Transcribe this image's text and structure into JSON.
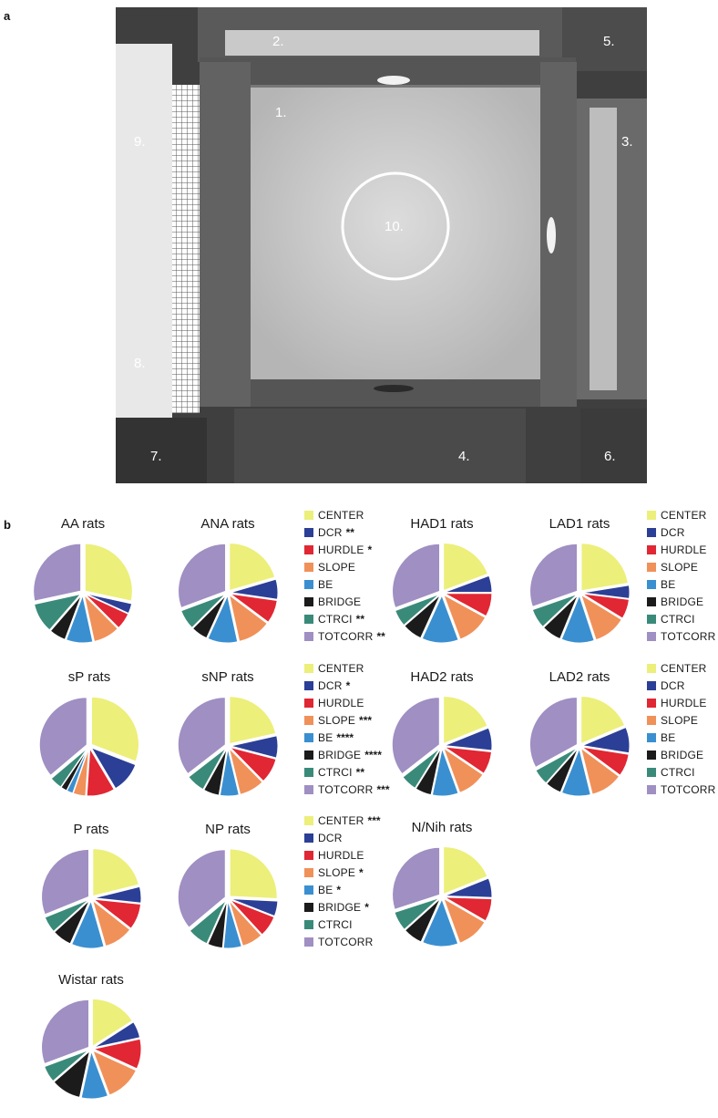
{
  "panels": {
    "a": "a",
    "b": "b"
  },
  "photo": {
    "labels": [
      "1.",
      "2.",
      "3.",
      "4.",
      "5.",
      "6.",
      "7.",
      "8.",
      "9.",
      "10."
    ]
  },
  "colors": {
    "CENTER": "#ecef7a",
    "DCR": "#2b3f96",
    "HURDLE": "#e02733",
    "SLOPE": "#f0915a",
    "BE": "#3a8fd0",
    "BRIDGE": "#1b1b1b",
    "CTRCI": "#3a8a7a",
    "TOTCORR": "#9f8fc2"
  },
  "chart_data": [
    {
      "type": "pie",
      "title": "AA rats",
      "categories": [
        "CENTER",
        "DCR",
        "HURDLE",
        "SLOPE",
        "BE",
        "BRIDGE",
        "CTRCI",
        "TOTCORR"
      ],
      "values": [
        25,
        3,
        5,
        8,
        8,
        5,
        9,
        25
      ]
    },
    {
      "type": "pie",
      "title": "ANA rats",
      "categories": [
        "CENTER",
        "DCR",
        "HURDLE",
        "SLOPE",
        "BE",
        "BRIDGE",
        "CTRCI",
        "TOTCORR"
      ],
      "values": [
        18,
        6,
        7,
        10,
        9,
        5,
        6,
        27
      ]
    },
    {
      "type": "pie",
      "title": "HAD1 rats",
      "categories": [
        "CENTER",
        "DCR",
        "HURDLE",
        "SLOPE",
        "BE",
        "BRIDGE",
        "CTRCI",
        "TOTCORR"
      ],
      "values": [
        17,
        5,
        7,
        10,
        11,
        6,
        5,
        27
      ]
    },
    {
      "type": "pie",
      "title": "LAD1 rats",
      "categories": [
        "CENTER",
        "DCR",
        "HURDLE",
        "SLOPE",
        "BE",
        "BRIDGE",
        "CTRCI",
        "TOTCORR"
      ],
      "values": [
        20,
        4,
        6,
        10,
        10,
        6,
        6,
        27
      ]
    },
    {
      "type": "pie",
      "title": "sP rats",
      "categories": [
        "CENTER",
        "DCR",
        "HURDLE",
        "SLOPE",
        "BE",
        "BRIDGE",
        "CTRCI",
        "TOTCORR"
      ],
      "values": [
        29,
        10,
        9,
        4,
        2,
        2,
        4,
        34
      ]
    },
    {
      "type": "pie",
      "title": "sNP rats",
      "categories": [
        "CENTER",
        "DCR",
        "HURDLE",
        "SLOPE",
        "BE",
        "BRIDGE",
        "CTRCI",
        "TOTCORR"
      ],
      "values": [
        20,
        7,
        8,
        8,
        6,
        5,
        6,
        33
      ]
    },
    {
      "type": "pie",
      "title": "HAD2 rats",
      "categories": [
        "CENTER",
        "DCR",
        "HURDLE",
        "SLOPE",
        "BE",
        "BRIDGE",
        "CTRCI",
        "TOTCORR"
      ],
      "values": [
        17,
        7,
        7,
        9,
        8,
        5,
        5,
        32
      ]
    },
    {
      "type": "pie",
      "title": "LAD2 rats",
      "categories": [
        "CENTER",
        "DCR",
        "HURDLE",
        "SLOPE",
        "BE",
        "BRIDGE",
        "CTRCI",
        "TOTCORR"
      ],
      "values": [
        17,
        8,
        7,
        10,
        9,
        5,
        5,
        30
      ]
    },
    {
      "type": "pie",
      "title": "P rats",
      "categories": [
        "CENTER",
        "DCR",
        "HURDLE",
        "SLOPE",
        "BE",
        "BRIDGE",
        "CTRCI",
        "TOTCORR"
      ],
      "values": [
        19,
        5,
        8,
        9,
        10,
        6,
        5,
        28
      ]
    },
    {
      "type": "pie",
      "title": "NP rats",
      "categories": [
        "CENTER",
        "DCR",
        "HURDLE",
        "SLOPE",
        "BE",
        "BRIDGE",
        "CTRCI",
        "TOTCORR"
      ],
      "values": [
        25,
        5,
        7,
        7,
        6,
        5,
        7,
        35
      ]
    },
    {
      "type": "pie",
      "title": "N/Nih rats",
      "categories": [
        "CENTER",
        "DCR",
        "HURDLE",
        "SLOPE",
        "BE",
        "BRIDGE",
        "CTRCI",
        "TOTCORR"
      ],
      "values": [
        17,
        6,
        7,
        10,
        11,
        6,
        6,
        27
      ]
    },
    {
      "type": "pie",
      "title": "Wistar rats",
      "categories": [
        "CENTER",
        "DCR",
        "HURDLE",
        "SLOPE",
        "BE",
        "BRIDGE",
        "CTRCI",
        "TOTCORR"
      ],
      "values": [
        14,
        5,
        9,
        11,
        8,
        9,
        5,
        27
      ]
    }
  ],
  "legends": [
    {
      "id": "legend-ana",
      "items": [
        {
          "cat": "CENTER",
          "label": "CENTER",
          "stars": ""
        },
        {
          "cat": "DCR",
          "label": "DCR",
          "stars": "**"
        },
        {
          "cat": "HURDLE",
          "label": "HURDLE",
          "stars": "*"
        },
        {
          "cat": "SLOPE",
          "label": "SLOPE",
          "stars": ""
        },
        {
          "cat": "BE",
          "label": "BE",
          "stars": ""
        },
        {
          "cat": "BRIDGE",
          "label": "BRIDGE",
          "stars": ""
        },
        {
          "cat": "CTRCI",
          "label": "CTRCI",
          "stars": "**"
        },
        {
          "cat": "TOTCORR",
          "label": "TOTCORR",
          "stars": "**"
        }
      ]
    },
    {
      "id": "legend-lad1",
      "items": [
        {
          "cat": "CENTER",
          "label": "CENTER",
          "stars": ""
        },
        {
          "cat": "DCR",
          "label": "DCR",
          "stars": ""
        },
        {
          "cat": "HURDLE",
          "label": "HURDLE",
          "stars": ""
        },
        {
          "cat": "SLOPE",
          "label": "SLOPE",
          "stars": ""
        },
        {
          "cat": "BE",
          "label": "BE",
          "stars": ""
        },
        {
          "cat": "BRIDGE",
          "label": "BRIDGE",
          "stars": ""
        },
        {
          "cat": "CTRCI",
          "label": "CTRCI",
          "stars": ""
        },
        {
          "cat": "TOTCORR",
          "label": "TOTCORR",
          "stars": ""
        }
      ]
    },
    {
      "id": "legend-snp",
      "items": [
        {
          "cat": "CENTER",
          "label": "CENTER",
          "stars": ""
        },
        {
          "cat": "DCR",
          "label": "DCR",
          "stars": "*"
        },
        {
          "cat": "HURDLE",
          "label": "HURDLE",
          "stars": ""
        },
        {
          "cat": "SLOPE",
          "label": "SLOPE",
          "stars": "***"
        },
        {
          "cat": "BE",
          "label": "BE",
          "stars": "****"
        },
        {
          "cat": "BRIDGE",
          "label": "BRIDGE",
          "stars": "****"
        },
        {
          "cat": "CTRCI",
          "label": "CTRCI",
          "stars": "**"
        },
        {
          "cat": "TOTCORR",
          "label": "TOTCORR",
          "stars": "***"
        }
      ]
    },
    {
      "id": "legend-lad2",
      "items": [
        {
          "cat": "CENTER",
          "label": "CENTER",
          "stars": ""
        },
        {
          "cat": "DCR",
          "label": "DCR",
          "stars": ""
        },
        {
          "cat": "HURDLE",
          "label": "HURDLE",
          "stars": ""
        },
        {
          "cat": "SLOPE",
          "label": "SLOPE",
          "stars": ""
        },
        {
          "cat": "BE",
          "label": "BE",
          "stars": ""
        },
        {
          "cat": "BRIDGE",
          "label": "BRIDGE",
          "stars": ""
        },
        {
          "cat": "CTRCI",
          "label": "CTRCI",
          "stars": ""
        },
        {
          "cat": "TOTCORR",
          "label": "TOTCORR",
          "stars": ""
        }
      ]
    },
    {
      "id": "legend-np",
      "items": [
        {
          "cat": "CENTER",
          "label": "CENTER",
          "stars": "***"
        },
        {
          "cat": "DCR",
          "label": "DCR",
          "stars": ""
        },
        {
          "cat": "HURDLE",
          "label": "HURDLE",
          "stars": ""
        },
        {
          "cat": "SLOPE",
          "label": "SLOPE",
          "stars": "*"
        },
        {
          "cat": "BE",
          "label": "BE",
          "stars": "*"
        },
        {
          "cat": "BRIDGE",
          "label": "BRIDGE",
          "stars": "*"
        },
        {
          "cat": "CTRCI",
          "label": "CTRCI",
          "stars": ""
        },
        {
          "cat": "TOTCORR",
          "label": "TOTCORR",
          "stars": ""
        }
      ]
    }
  ]
}
